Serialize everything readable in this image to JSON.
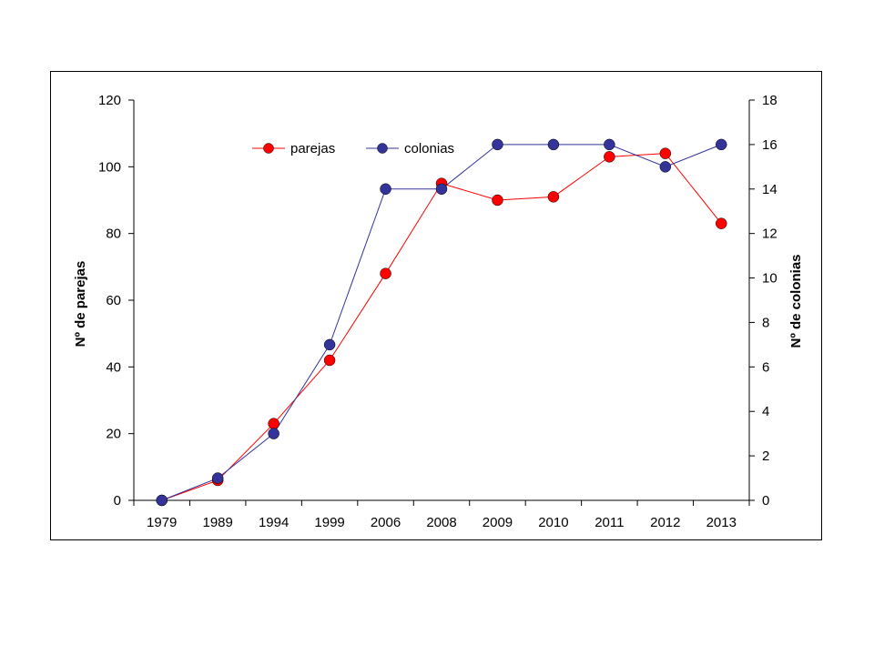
{
  "chart_data": {
    "type": "line",
    "categories": [
      "1979",
      "1989",
      "1994",
      "1999",
      "2006",
      "2008",
      "2009",
      "2010",
      "2011",
      "2012",
      "2013"
    ],
    "series": [
      {
        "name": "parejas",
        "axis": "left",
        "color": "#ff0000",
        "values": [
          0,
          6,
          23,
          42,
          68,
          95,
          90,
          91,
          103,
          104,
          83
        ]
      },
      {
        "name": "colonias",
        "axis": "right",
        "color": "#333399",
        "values": [
          0,
          1,
          3,
          7,
          14,
          14,
          16,
          16,
          16,
          15,
          16
        ]
      }
    ],
    "ylabel": "Nº de parejas",
    "y2label": "Nº de colonias",
    "ylim": [
      0,
      120
    ],
    "y2lim": [
      0,
      18
    ],
    "yticks": [
      "0",
      "20",
      "40",
      "60",
      "80",
      "100",
      "120"
    ],
    "y2ticks": [
      "0",
      "2",
      "4",
      "6",
      "8",
      "10",
      "12",
      "14",
      "16",
      "18"
    ],
    "legend": "top-center",
    "grid": false
  }
}
